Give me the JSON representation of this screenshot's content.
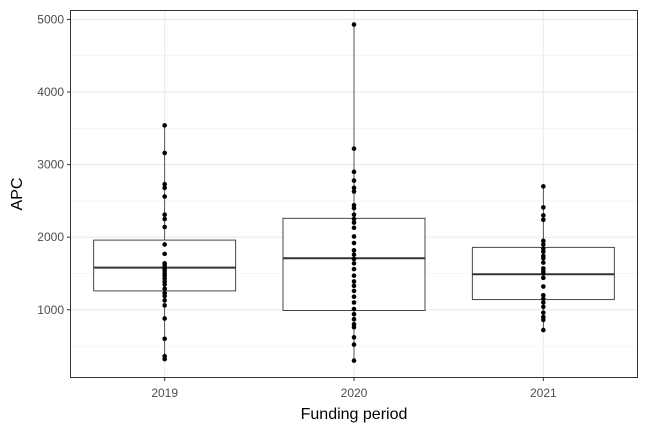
{
  "chart_data": {
    "type": "boxplot",
    "xlabel": "Funding period",
    "ylabel": "APC",
    "categories": [
      "2019",
      "2020",
      "2021"
    ],
    "yticks": [
      1000,
      2000,
      3000,
      4000,
      5000
    ],
    "ylim": [
      60,
      5130
    ],
    "grid": true,
    "boxes": [
      {
        "category": "2019",
        "q1": 1260,
        "median": 1580,
        "q3": 1960,
        "whisker_low": 320,
        "whisker_high": 3540
      },
      {
        "category": "2020",
        "q1": 990,
        "median": 1710,
        "q3": 2260,
        "whisker_low": 300,
        "whisker_high": 4930
      },
      {
        "category": "2021",
        "q1": 1140,
        "median": 1490,
        "q3": 1860,
        "whisker_low": 720,
        "whisker_high": 2700
      }
    ],
    "points": [
      {
        "category": "2019",
        "values": [
          3540,
          3160,
          2730,
          2680,
          2560,
          2310,
          2250,
          2140,
          1900,
          1770,
          1640,
          1610,
          1570,
          1540,
          1500,
          1470,
          1430,
          1390,
          1350,
          1290,
          1230,
          1190,
          1130,
          1060,
          880,
          600,
          360,
          320
        ]
      },
      {
        "category": "2020",
        "values": [
          4930,
          3220,
          2900,
          2780,
          2680,
          2630,
          2440,
          2400,
          2310,
          2250,
          2200,
          2130,
          2010,
          1920,
          1820,
          1760,
          1700,
          1640,
          1560,
          1470,
          1390,
          1330,
          1260,
          1180,
          1100,
          1010,
          940,
          870,
          800,
          760,
          620,
          520,
          300
        ]
      },
      {
        "category": "2021",
        "values": [
          2700,
          2410,
          2300,
          2240,
          1950,
          1900,
          1840,
          1800,
          1740,
          1710,
          1650,
          1570,
          1530,
          1500,
          1440,
          1320,
          1200,
          1150,
          1100,
          1040,
          960,
          900,
          860,
          720
        ]
      }
    ]
  }
}
